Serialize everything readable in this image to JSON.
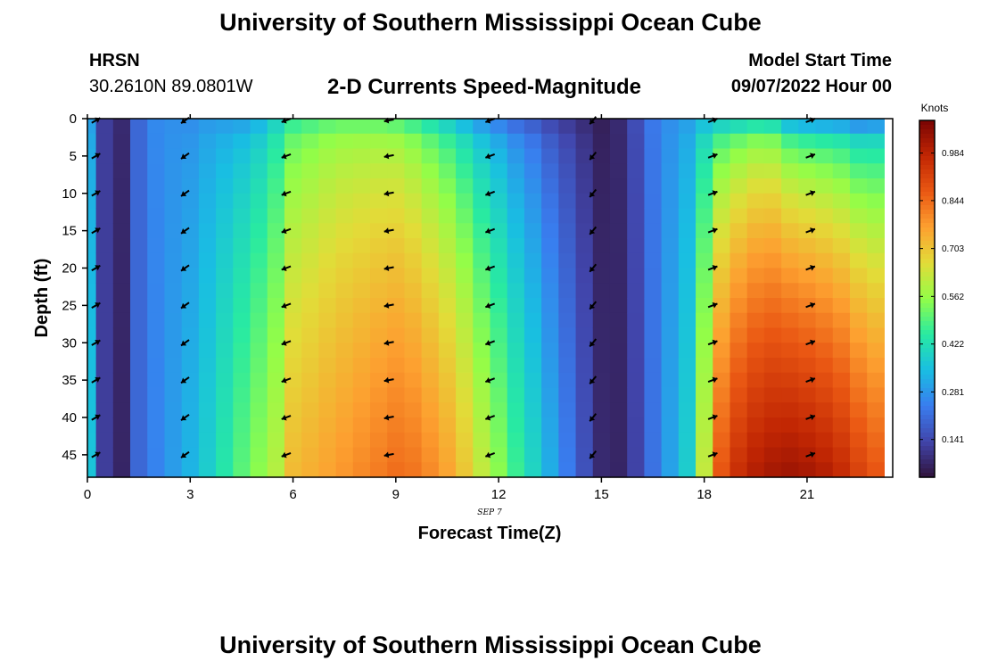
{
  "header": {
    "title": "University of Southern Mississippi Ocean Cube",
    "station": "HRSN",
    "coords": "30.2610N  89.0801W",
    "subtitle": "2-D Currents Speed-Magnitude",
    "start_label": "Model Start Time",
    "start_value": "09/07/2022 Hour 00"
  },
  "footer": {
    "title": "University of Southern Mississippi Ocean Cube"
  },
  "chart_data": {
    "type": "heatmap",
    "title": "2-D Currents Speed-Magnitude",
    "xlabel": "Forecast Time(Z)",
    "ylabel": "Depth (ft)",
    "date_label": "SEP 7",
    "xlim": [
      0,
      23.5
    ],
    "ylim": [
      48,
      0
    ],
    "x_ticks": [
      "0",
      "3",
      "6",
      "9",
      "12",
      "15",
      "18",
      "21"
    ],
    "y_ticks": [
      "0",
      "5",
      "10",
      "15",
      "20",
      "25",
      "30",
      "35",
      "40",
      "45"
    ],
    "colorbar": {
      "unit": "Knots",
      "ticks": [
        "0.984",
        "0.844",
        "0.703",
        "0.562",
        "0.422",
        "0.281",
        "0.141"
      ],
      "range": [
        0.03,
        1.08
      ]
    },
    "time_steps": [
      0,
      0.5,
      1,
      1.5,
      2,
      2.5,
      3,
      3.5,
      4,
      4.5,
      5,
      5.5,
      6,
      6.5,
      7,
      7.5,
      8,
      8.5,
      9,
      9.5,
      10,
      10.5,
      11,
      11.5,
      12,
      12.5,
      13,
      13.5,
      14,
      14.5,
      15,
      15.5,
      16,
      16.5,
      17,
      17.5,
      18,
      18.5,
      19,
      19.5,
      20,
      20.5,
      21,
      21.5,
      22,
      22.5,
      23
    ],
    "speed_surface": [
      0.3,
      0.12,
      0.08,
      0.2,
      0.26,
      0.27,
      0.27,
      0.29,
      0.3,
      0.31,
      0.34,
      0.4,
      0.47,
      0.49,
      0.51,
      0.52,
      0.52,
      0.52,
      0.51,
      0.48,
      0.44,
      0.4,
      0.35,
      0.3,
      0.26,
      0.22,
      0.19,
      0.15,
      0.12,
      0.09,
      0.06,
      0.08,
      0.15,
      0.23,
      0.27,
      0.3,
      0.36,
      0.4,
      0.42,
      0.44,
      0.43,
      0.36,
      0.34,
      0.33,
      0.32,
      0.29,
      0.3
    ],
    "speed_bottom": [
      0.36,
      0.12,
      0.07,
      0.2,
      0.25,
      0.29,
      0.33,
      0.38,
      0.44,
      0.5,
      0.55,
      0.6,
      0.72,
      0.74,
      0.76,
      0.78,
      0.8,
      0.82,
      0.84,
      0.83,
      0.8,
      0.76,
      0.7,
      0.62,
      0.55,
      0.47,
      0.4,
      0.32,
      0.24,
      0.16,
      0.08,
      0.07,
      0.13,
      0.22,
      0.3,
      0.38,
      0.62,
      0.88,
      0.96,
      1.0,
      1.02,
      1.03,
      1.02,
      1.0,
      0.97,
      0.92,
      0.88
    ],
    "speed_near_surface_rows": [
      1,
      1,
      1,
      1,
      1,
      1,
      1,
      1,
      1,
      1,
      1,
      1,
      1,
      1,
      1,
      1,
      1,
      1,
      1,
      1,
      1,
      1,
      1,
      1,
      1,
      1,
      1,
      1,
      1,
      1,
      1,
      1,
      1,
      1,
      1,
      1,
      1,
      1,
      1,
      1,
      1,
      1,
      1,
      1,
      1,
      1,
      1
    ],
    "arrow_times": [
      0.25,
      2.85,
      5.8,
      8.8,
      11.75,
      14.75,
      18.25,
      21.1
    ],
    "arrow_depths": [
      0,
      5,
      10,
      15,
      20,
      25,
      30,
      35,
      40,
      45
    ],
    "arrow_direction_deg": [
      30,
      215,
      200,
      190,
      200,
      230,
      20,
      20
    ]
  }
}
